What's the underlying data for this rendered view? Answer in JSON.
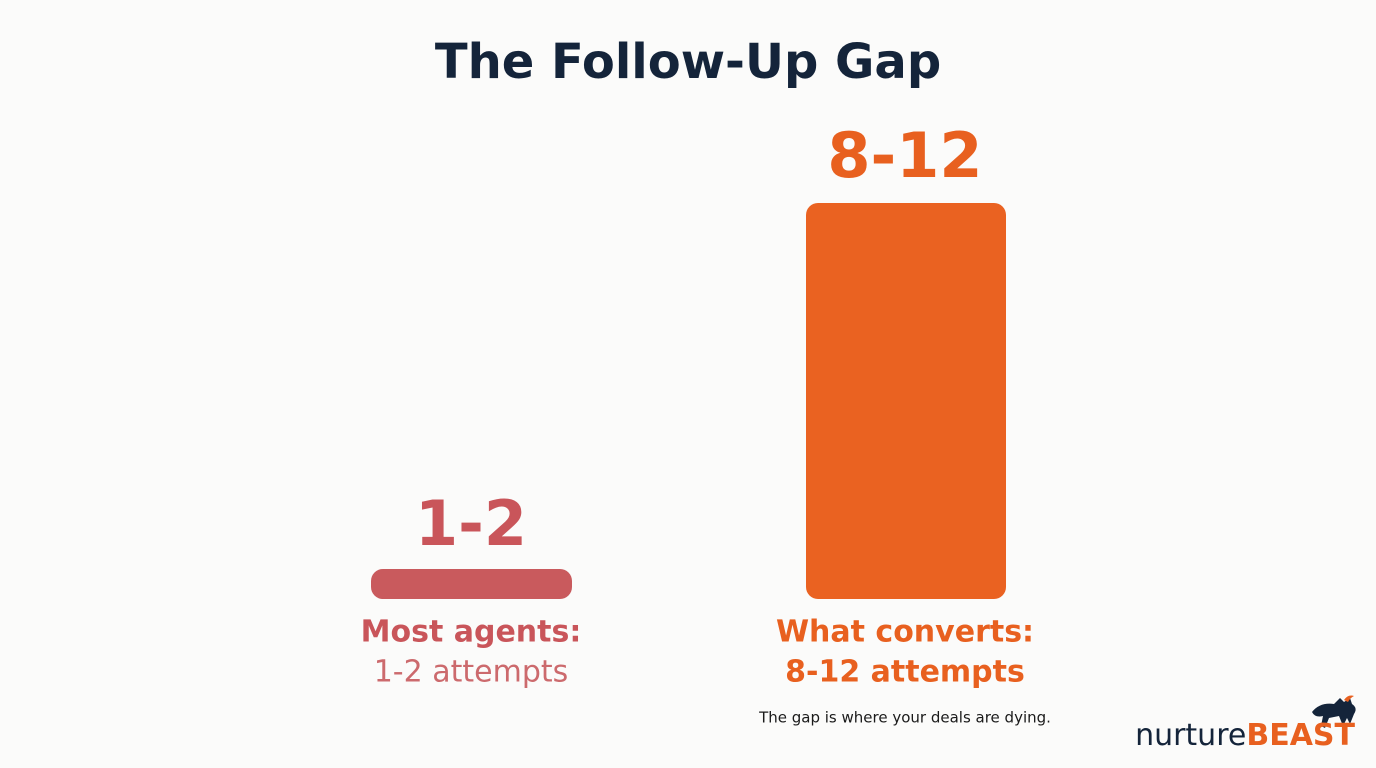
{
  "title": "The Follow-Up Gap",
  "columns": [
    {
      "value_label": "1-2",
      "label": "Most agents:",
      "sublabel": "1-2 attempts"
    },
    {
      "value_label": "8-12",
      "label": "What converts:",
      "sublabel": "8-12 attempts"
    }
  ],
  "note": "The gap is where your deals are dying.",
  "brand": {
    "prefix": "nurture",
    "suffix": "BEAST"
  }
}
